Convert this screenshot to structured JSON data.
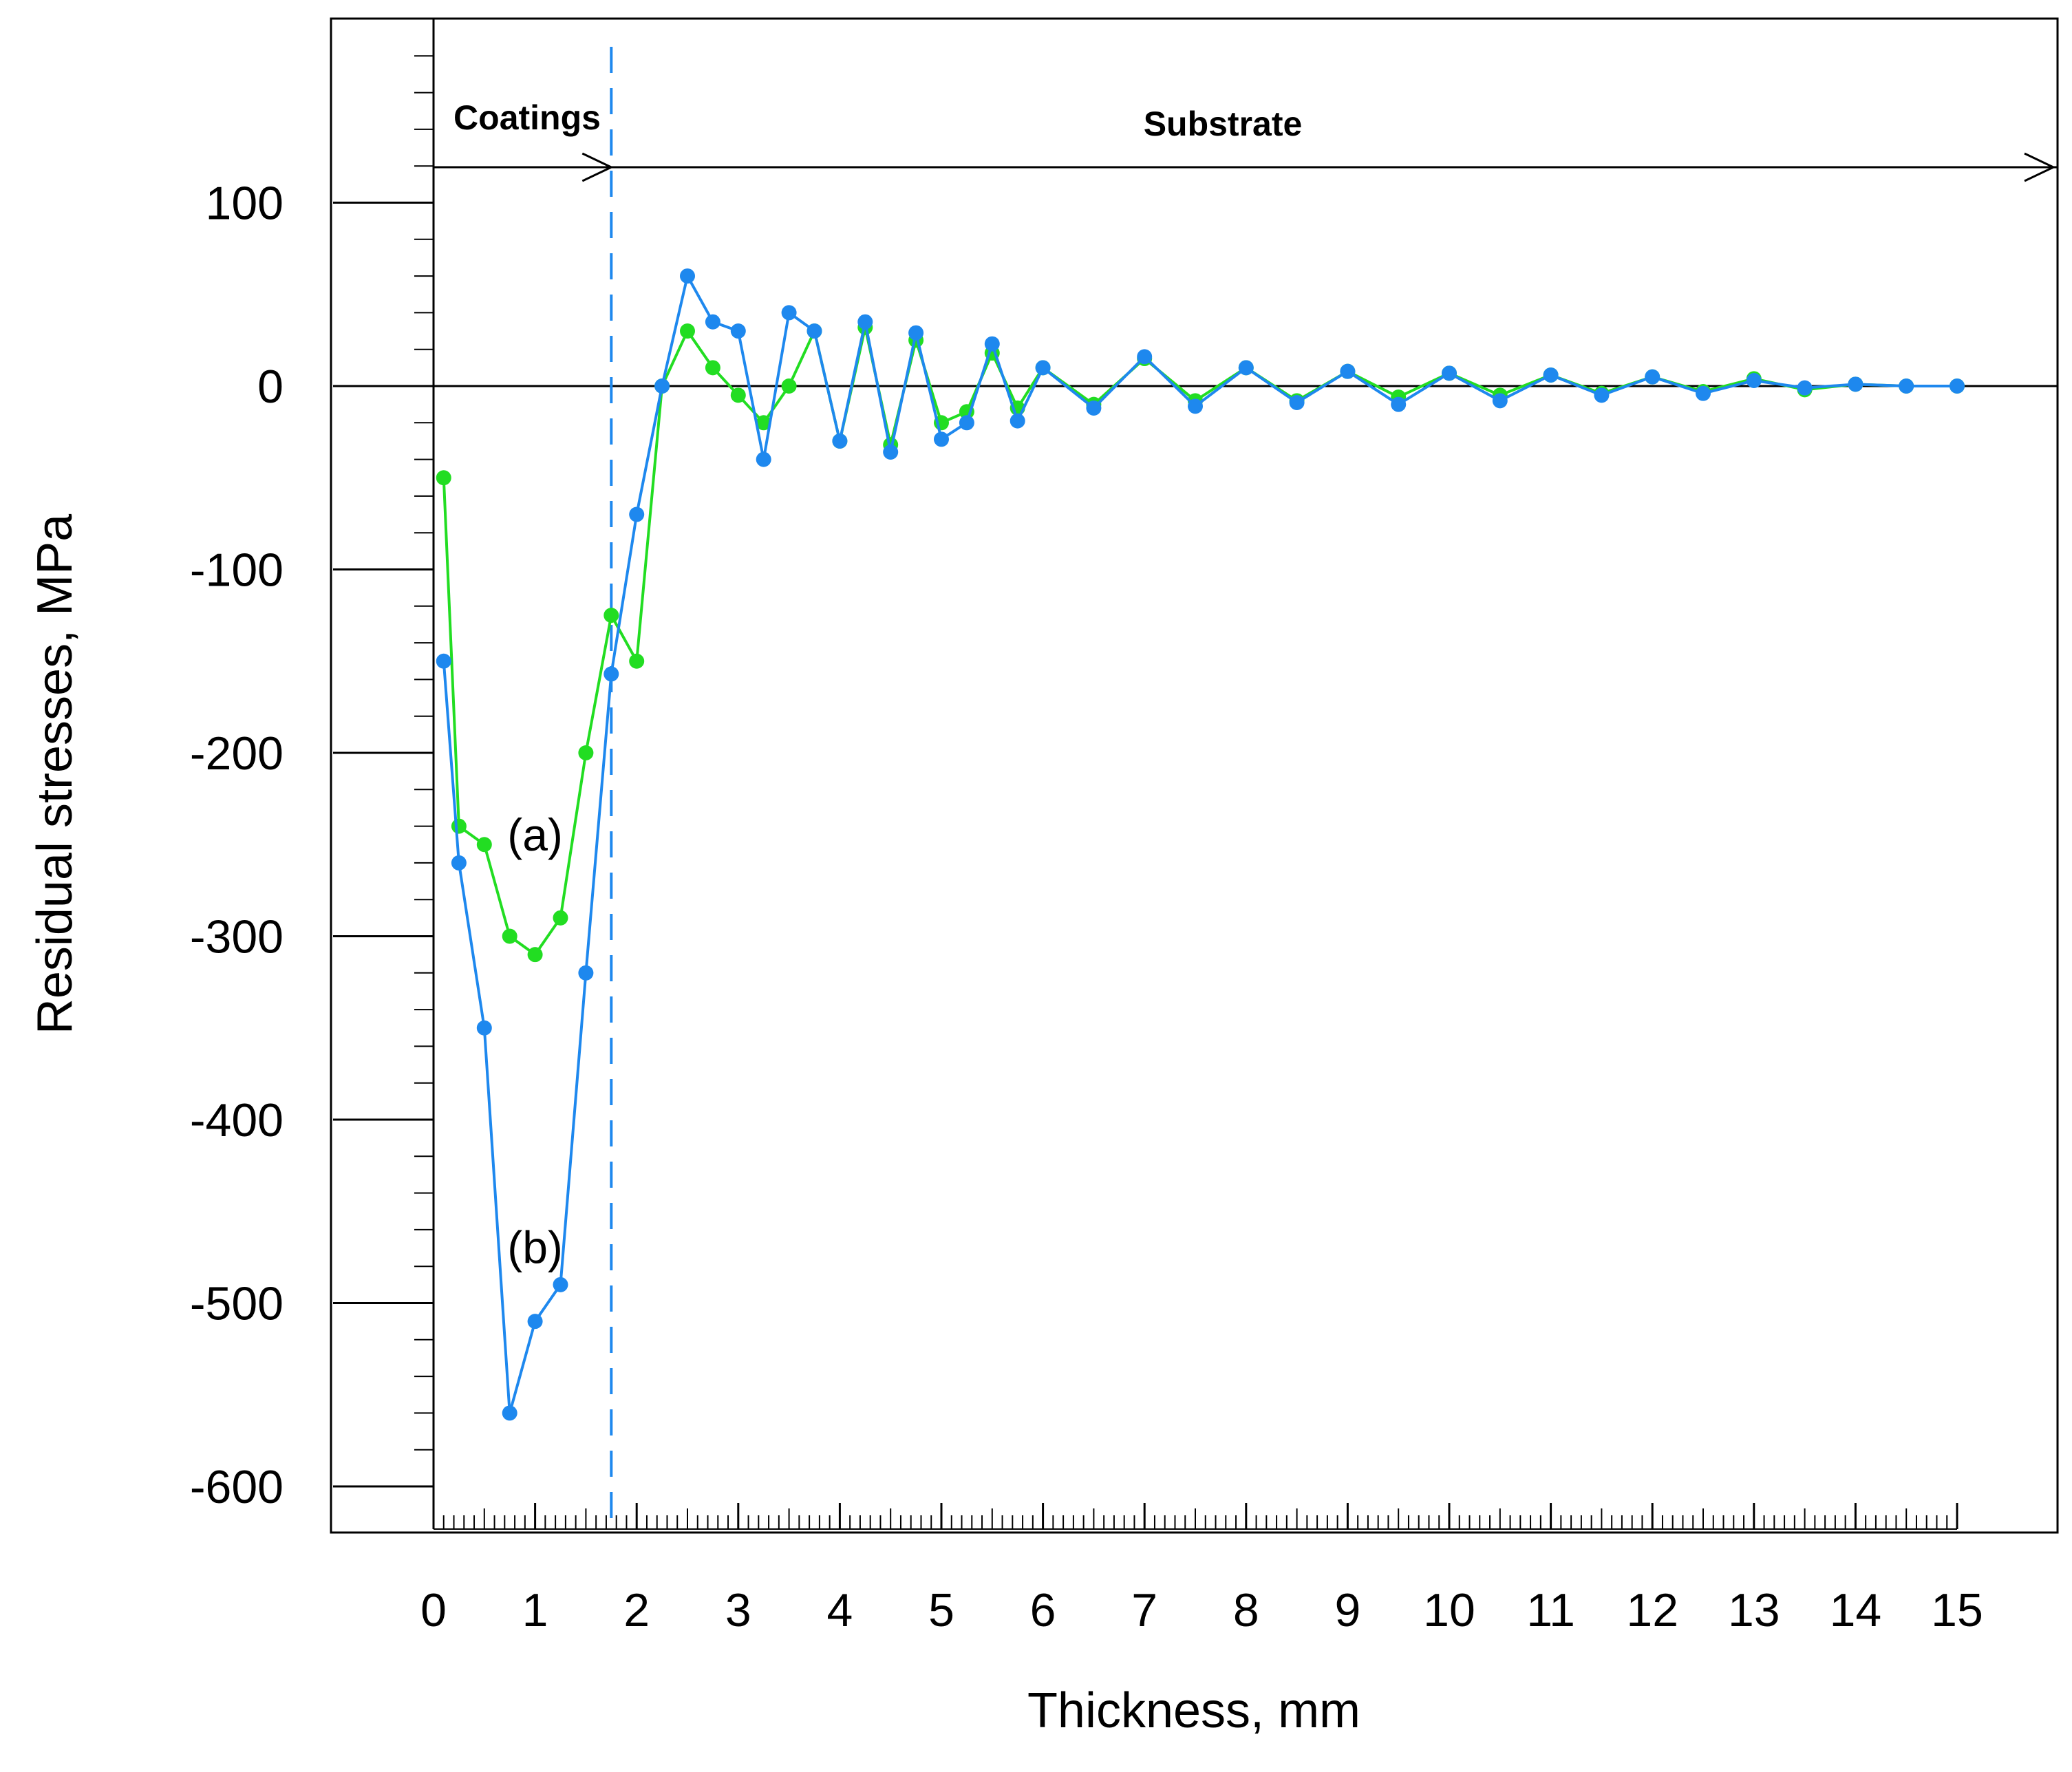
{
  "chart_data": {
    "type": "line",
    "title": "",
    "xlabel": "Thickness, mm",
    "ylabel": "Residual stresses, MPa",
    "xlim": [
      -1,
      16
    ],
    "ylim": [
      -620,
      200
    ],
    "x_ticks": [
      0,
      1,
      2,
      3,
      4,
      5,
      6,
      7,
      8,
      9,
      10,
      11,
      12,
      13,
      14,
      15
    ],
    "y_ticks": [
      -600,
      -500,
      -400,
      -300,
      -200,
      -100,
      0,
      100
    ],
    "grid": false,
    "legend": "none",
    "regions": [
      {
        "label": "Coatings",
        "x_from": 0,
        "x_to": 1.75
      },
      {
        "label": "Substrate",
        "x_from": 1.75,
        "x_to": 16
      }
    ],
    "boundary_x": 1.75,
    "series": [
      {
        "name": "(a)",
        "color": "#22dd22",
        "x": [
          0.1,
          0.25,
          0.5,
          0.75,
          1.0,
          1.25,
          1.5,
          1.75,
          2.0,
          2.25,
          2.5,
          2.75,
          3.0,
          3.25,
          3.5,
          3.75,
          4.0,
          4.25,
          4.5,
          4.75,
          5.0,
          5.25,
          5.5,
          5.75,
          6.0,
          6.5,
          7.0,
          7.5,
          8.0,
          8.5,
          9.0,
          9.5,
          10.0,
          10.5,
          11.0,
          11.5,
          12.0,
          12.5,
          13.0,
          13.5,
          14.0,
          14.5,
          15.0
        ],
        "y": [
          -50,
          -240,
          -250,
          -300,
          -310,
          -290,
          -200,
          -125,
          -150,
          0,
          30,
          10,
          -5,
          -20,
          0,
          30,
          -30,
          32,
          -32,
          25,
          -20,
          -14,
          18,
          -12,
          10,
          -10,
          15,
          -8,
          10,
          -8,
          8,
          -6,
          7,
          -5,
          6,
          -4,
          5,
          -3,
          4,
          -2,
          1,
          0,
          0
        ]
      },
      {
        "name": "(b)",
        "color": "#1e88ee",
        "x": [
          0.1,
          0.25,
          0.5,
          0.75,
          1.0,
          1.25,
          1.5,
          1.75,
          2.0,
          2.25,
          2.5,
          2.75,
          3.0,
          3.25,
          3.5,
          3.75,
          4.0,
          4.25,
          4.5,
          4.75,
          5.0,
          5.25,
          5.5,
          5.75,
          6.0,
          6.5,
          7.0,
          7.5,
          8.0,
          8.5,
          9.0,
          9.5,
          10.0,
          10.5,
          11.0,
          11.5,
          12.0,
          12.5,
          13.0,
          13.5,
          14.0,
          14.5,
          15.0
        ],
        "y": [
          -150,
          -260,
          -350,
          -560,
          -510,
          -490,
          -320,
          -157,
          -70,
          0,
          60,
          35,
          30,
          -40,
          40,
          30,
          -30,
          35,
          -36,
          29,
          -29,
          -20,
          23,
          -19,
          10,
          -12,
          16,
          -11,
          10,
          -9,
          8,
          -10,
          7,
          -8,
          6,
          -5,
          5,
          -4,
          3,
          -1,
          1,
          0,
          0
        ]
      }
    ],
    "annotations": [
      {
        "text": "(a)",
        "x": 1.0,
        "y": -245
      },
      {
        "text": "(b)",
        "x": 1.0,
        "y": -470
      }
    ]
  }
}
